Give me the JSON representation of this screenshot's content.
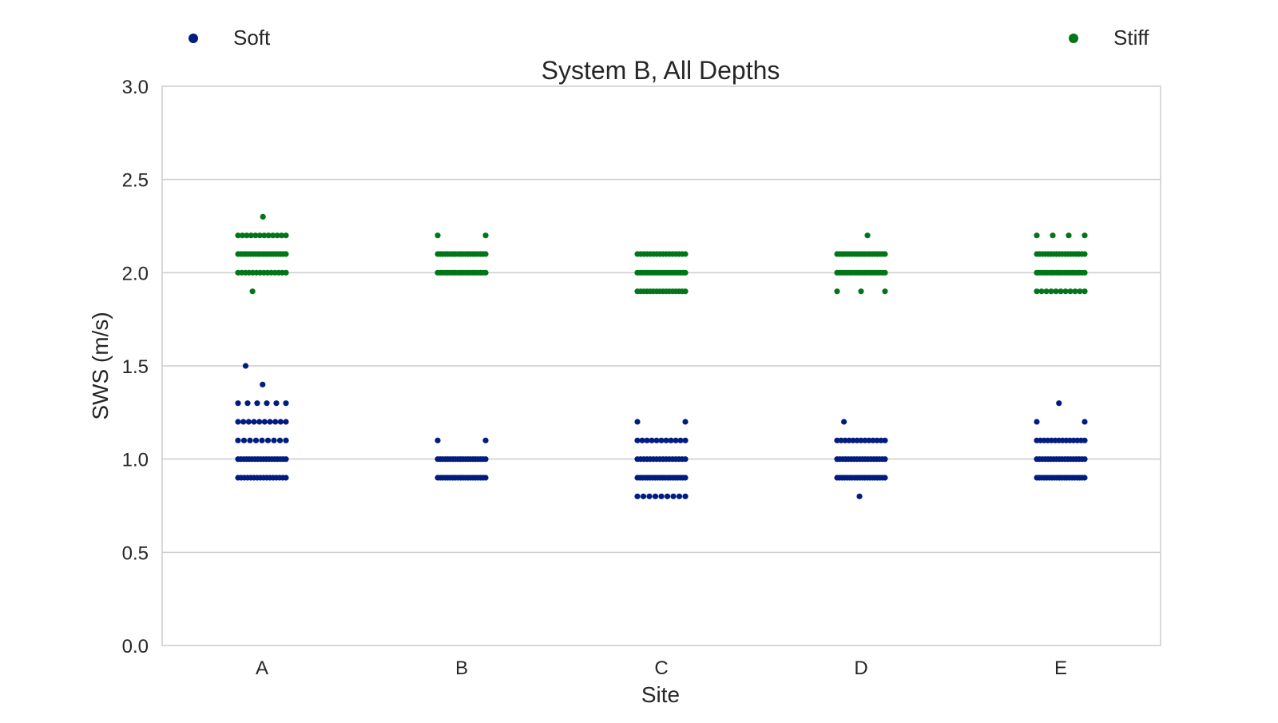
{
  "chart_data": {
    "type": "scatter",
    "title": "System B, All Depths",
    "xlabel": "Site",
    "ylabel": "SWS (m/s)",
    "categories": [
      "A",
      "B",
      "C",
      "D",
      "E"
    ],
    "ylim": [
      0.0,
      3.0
    ],
    "yticks": [
      "0.0",
      "0.5",
      "1.0",
      "1.5",
      "2.0",
      "2.5",
      "3.0"
    ],
    "grid": true,
    "legend_placement": "top",
    "series": [
      {
        "name": "Soft",
        "color": "#001c7f",
        "points": {
          "A": {
            "0.9": 16,
            "1.0": 18,
            "1.1": 9,
            "1.2": 10,
            "1.3": 6,
            "1.4": 1,
            "1.5": 1
          },
          "B": {
            "0.9": 20,
            "1.0": 20,
            "1.1": 2
          },
          "C": {
            "0.8": 9,
            "0.9": 20,
            "1.0": 16,
            "1.1": 11,
            "1.2": 2
          },
          "D": {
            "0.8": 1,
            "0.9": 20,
            "1.0": 18,
            "1.1": 13,
            "1.2": 1
          },
          "E": {
            "0.9": 20,
            "1.0": 18,
            "1.1": 14,
            "1.2": 2,
            "1.3": 1
          }
        }
      },
      {
        "name": "Stiff",
        "color": "#017517",
        "points": {
          "A": {
            "1.9": 1,
            "2.0": 14,
            "2.1": 20,
            "2.2": 12,
            "2.3": 1
          },
          "B": {
            "2.0": 20,
            "2.1": 20,
            "2.2": 2
          },
          "C": {
            "1.9": 16,
            "2.0": 20,
            "2.1": 16
          },
          "D": {
            "1.9": 3,
            "2.0": 20,
            "2.1": 20,
            "2.2": 1
          },
          "E": {
            "1.9": 11,
            "2.0": 20,
            "2.1": 18,
            "2.2": 4
          }
        }
      }
    ]
  }
}
